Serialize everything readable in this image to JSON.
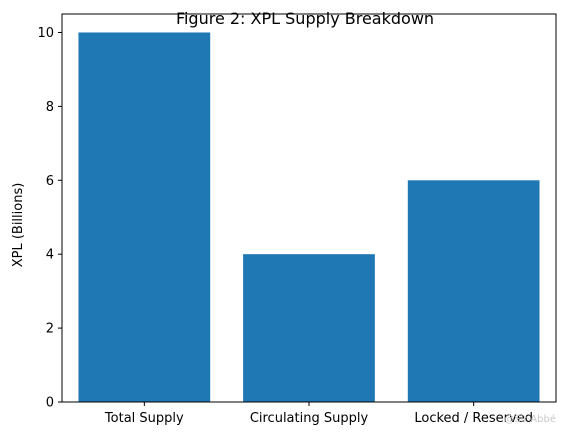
{
  "chart_data": {
    "type": "bar",
    "title": "Figure 2: XPL Supply Breakdown",
    "xlabel": "",
    "ylabel": "XPL (Billions)",
    "categories": [
      "Total Supply",
      "Circulating Supply",
      "Locked / Reserved"
    ],
    "values": [
      10,
      4,
      6
    ],
    "ylim": [
      0,
      10.5
    ],
    "yticks": [
      0,
      2,
      4,
      6,
      8,
      10
    ],
    "grid": false,
    "bar_color": "#1f77b4"
  },
  "watermark": "@Sir-Abbé"
}
